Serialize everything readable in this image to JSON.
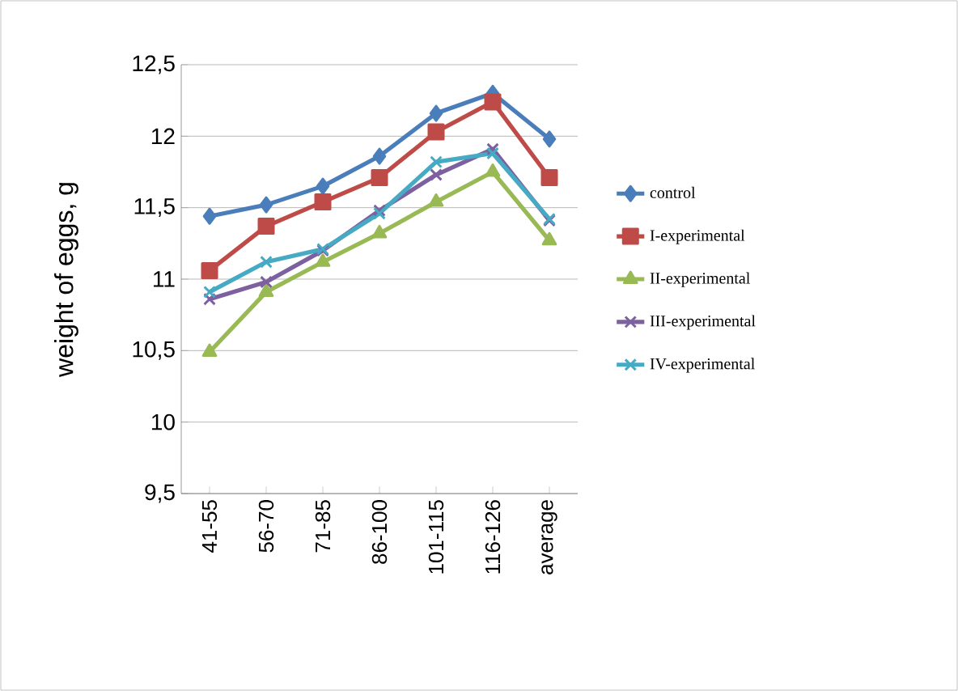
{
  "chart_data": {
    "type": "line",
    "ylabel": "weight of eggs, g",
    "categories": [
      "41-55",
      "56-70",
      "71-85",
      "86-100",
      "101-115",
      "116-126",
      "average"
    ],
    "ylim": [
      9.5,
      12.5
    ],
    "yticks": [
      {
        "value": 9.5,
        "label": "9,5"
      },
      10,
      {
        "value": 10.5,
        "label": "10,5"
      },
      11,
      {
        "value": 11.5,
        "label": "11,5"
      },
      12,
      {
        "value": 12.5,
        "label": "12,5"
      }
    ],
    "grid": "y",
    "legend": "right",
    "series": [
      {
        "name": "control",
        "color": "#4a7ebb",
        "marker": "diamond",
        "values": [
          11.44,
          11.52,
          11.65,
          11.86,
          12.16,
          12.3,
          11.98
        ]
      },
      {
        "name": "I-experimental",
        "color": "#be4b48",
        "marker": "square",
        "values": [
          11.06,
          11.37,
          11.54,
          11.71,
          12.03,
          12.24,
          11.71
        ]
      },
      {
        "name": "II-experimental",
        "color": "#98b954",
        "marker": "triangle",
        "values": [
          10.49,
          10.91,
          11.12,
          11.32,
          11.54,
          11.75,
          11.27
        ]
      },
      {
        "name": "III-experimental",
        "color": "#7d60a0",
        "marker": "cross",
        "values": [
          10.86,
          10.98,
          11.2,
          11.48,
          11.73,
          11.91,
          11.41
        ]
      },
      {
        "name": "IV-experimental",
        "color": "#46aac5",
        "marker": "cross",
        "values": [
          10.91,
          11.12,
          11.21,
          11.46,
          11.82,
          11.88,
          11.42
        ]
      }
    ]
  }
}
